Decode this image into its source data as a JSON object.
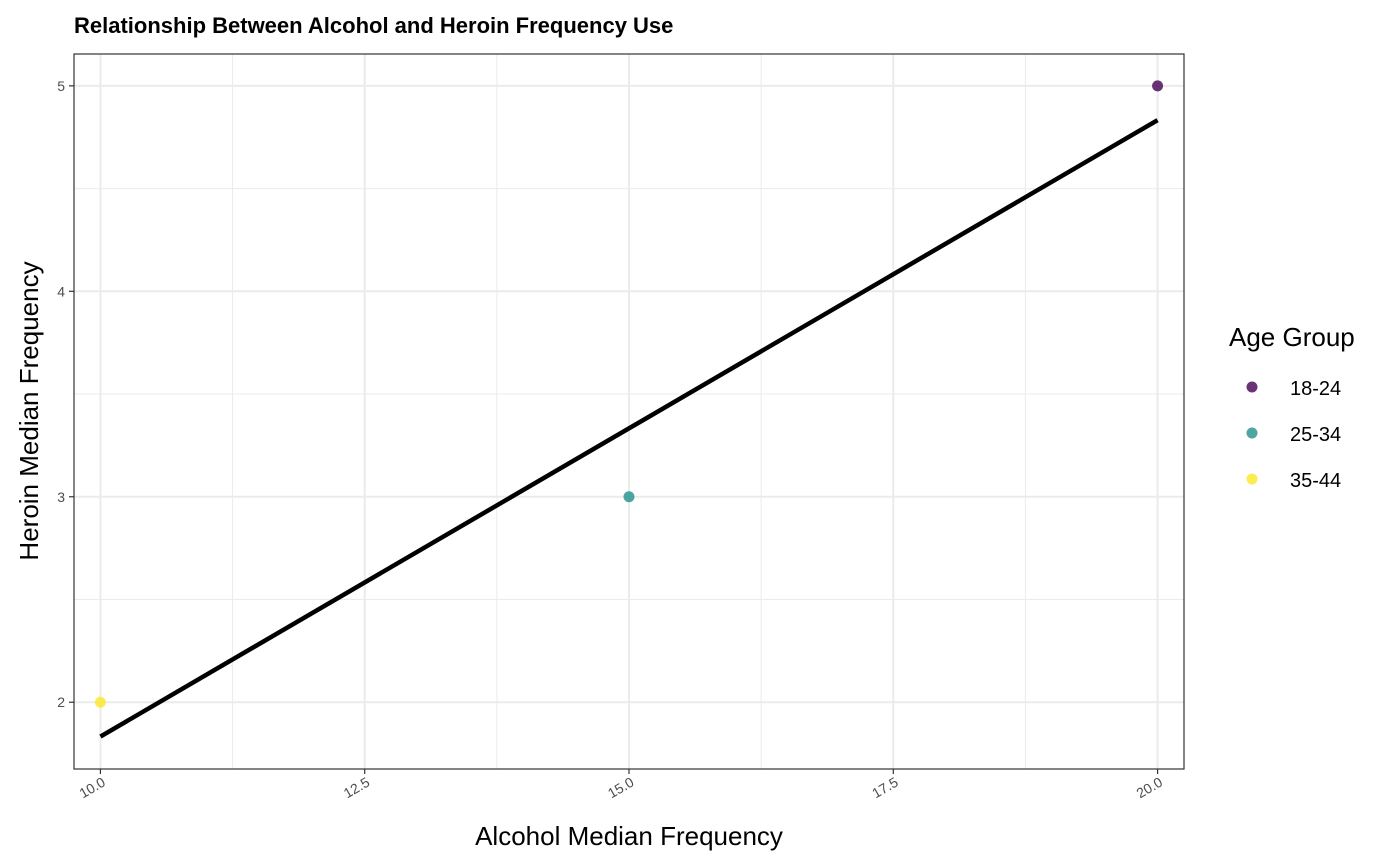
{
  "chart_data": {
    "type": "scatter",
    "title": "Relationship Between Alcohol and Heroin Frequency Use",
    "xlabel": "Alcohol Median Frequency",
    "ylabel": "Heroin Median Frequency",
    "xlim": [
      9.75,
      20.25
    ],
    "ylim": [
      1.675,
      5.155
    ],
    "x_ticks": [
      10.0,
      12.5,
      15.0,
      17.5,
      20.0
    ],
    "x_tick_labels": [
      "10.0",
      "12.5",
      "15.0",
      "17.5",
      "20.0"
    ],
    "y_ticks": [
      2,
      3,
      4,
      5
    ],
    "y_tick_labels": [
      "2",
      "3",
      "4",
      "5"
    ],
    "grid": true,
    "legend": {
      "title": "Age Group",
      "placement": "right",
      "entries": [
        {
          "label": "18-24",
          "color": "#440154"
        },
        {
          "label": "25-34",
          "color": "#21908C"
        },
        {
          "label": "35-44",
          "color": "#FDE725"
        }
      ]
    },
    "series": [
      {
        "name": "18-24",
        "color": "#440154",
        "points": [
          {
            "x": 20.0,
            "y": 5.0
          }
        ]
      },
      {
        "name": "25-34",
        "color": "#21908C",
        "points": [
          {
            "x": 15.0,
            "y": 3.0
          }
        ]
      },
      {
        "name": "35-44",
        "color": "#FDE725",
        "points": [
          {
            "x": 10.0,
            "y": 2.0
          }
        ]
      }
    ],
    "trend_line": {
      "color": "#000000",
      "from": {
        "x": 10.0,
        "y": 1.833
      },
      "to": {
        "x": 20.0,
        "y": 4.833
      }
    }
  }
}
